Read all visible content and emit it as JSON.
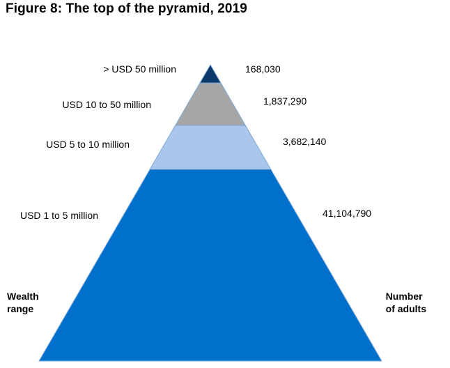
{
  "figure": {
    "title": "Figure 8: The top of the pyramid, 2019",
    "left_caption": [
      "Wealth",
      "range"
    ],
    "right_caption": [
      "Number",
      "of adults"
    ]
  },
  "chart_data": {
    "type": "pyramid",
    "title": "Figure 8: The top of the pyramid, 2019",
    "tiers": [
      {
        "label": ">  USD 50 million",
        "value": 168030,
        "value_label": "168,030",
        "color": "#0b3a6a"
      },
      {
        "label": "USD  10 to 50 million",
        "value": 1837290,
        "value_label": "1,837,290",
        "color": "#a6a6a6"
      },
      {
        "label": "USD 5 to 10 million",
        "value": 3682140,
        "value_label": "3,682,140",
        "color": "#aac6ea"
      },
      {
        "label": "USD 1  to 5 million",
        "value": 41104790,
        "value_label": "41,104,790",
        "color": "#0070cc"
      }
    ],
    "xlabel": "Wealth range",
    "ylabel": "Number of adults"
  }
}
